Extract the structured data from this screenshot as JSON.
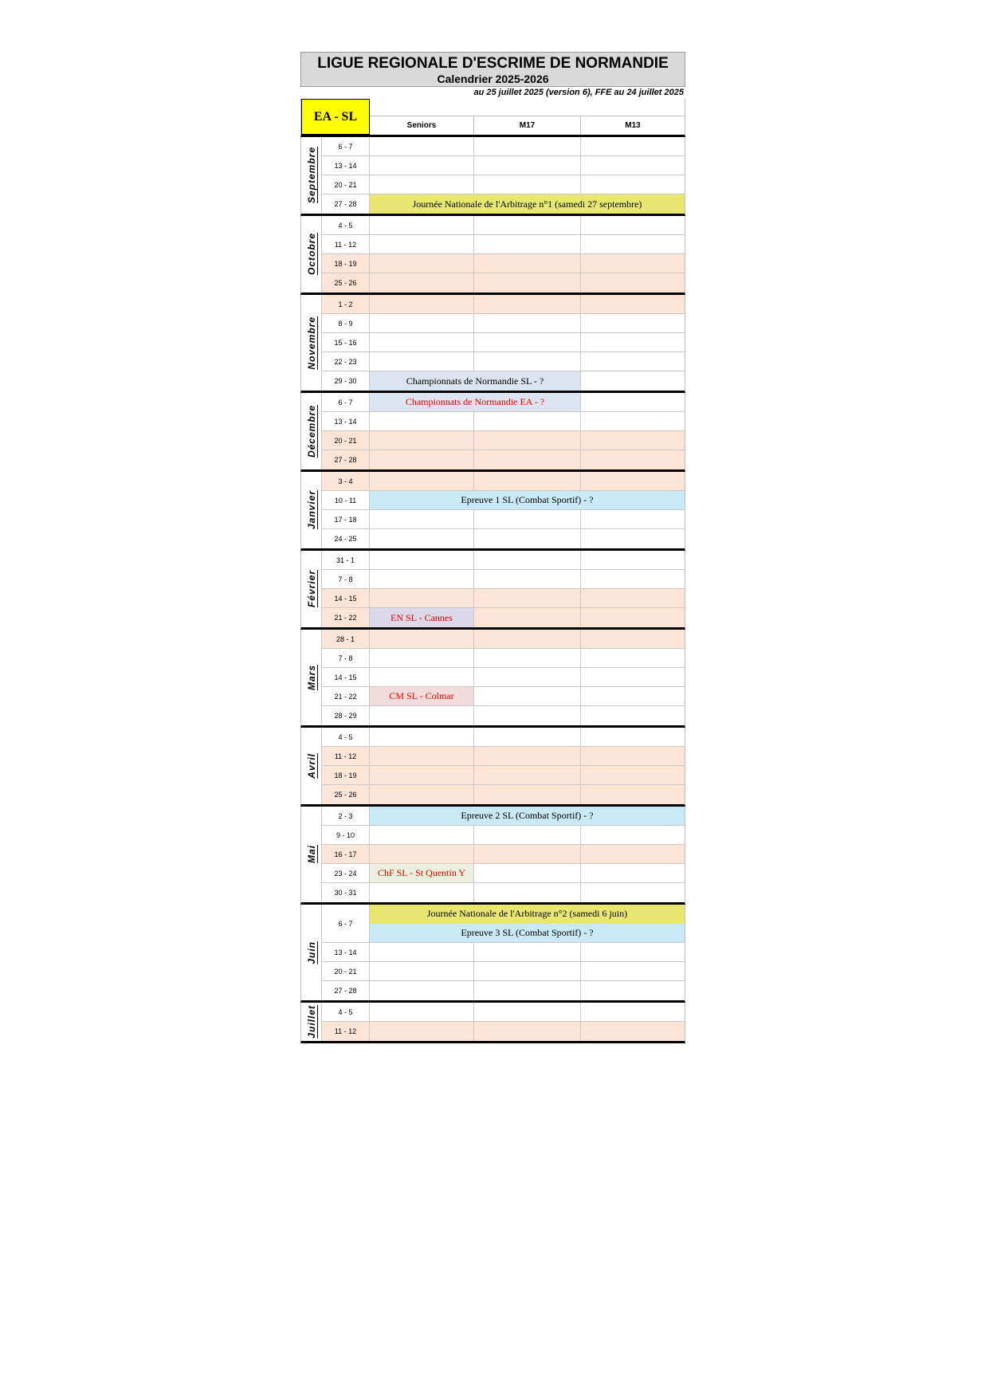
{
  "header": {
    "title": "LIGUE REGIONALE D'ESCRIME DE NORMANDIE",
    "subtitle": "Calendrier 2025-2026",
    "version_note": "au 25 juillet 2025 (version 6), FFE au 24 juillet 2025",
    "corner_label": "EA - SL",
    "columns": [
      "Seniors",
      "M17",
      "M13"
    ]
  },
  "colors": {
    "white": "#ffffff",
    "peach": "#fce4d6",
    "bandYellow": "#e8e870",
    "blueGrey": "#dce4ef",
    "lightBlue": "#c9e9f6",
    "lavender": "#dbd8e9",
    "rose": "#f2dcdb",
    "lightGreen": "#ebf1de",
    "cornerYellow": "#ffff00",
    "titleGrey": "#d9d9d9",
    "red": "#ee0000",
    "black": "#000000"
  },
  "months": [
    {
      "name": "Septembre",
      "weeks": [
        {
          "label": "6 - 7",
          "bg": "white"
        },
        {
          "label": "13 - 14",
          "bg": "white"
        },
        {
          "label": "20 - 21",
          "bg": "white"
        },
        {
          "label": "27 - 28",
          "band": {
            "text": "Journée Nationale de l'Arbitrage n°1 (samedi 27 septembre)",
            "bg": "bandYellow",
            "color": "black",
            "span": 3
          }
        }
      ]
    },
    {
      "name": "Octobre",
      "weeks": [
        {
          "label": "4 - 5",
          "bg": "white"
        },
        {
          "label": "11 - 12",
          "bg": "white"
        },
        {
          "label": "18 - 19",
          "bg": "peach"
        },
        {
          "label": "25 - 26",
          "bg": "peach"
        }
      ]
    },
    {
      "name": "Novembre",
      "weeks": [
        {
          "label": "1 - 2",
          "bg": "peach"
        },
        {
          "label": "8 - 9",
          "bg": "white"
        },
        {
          "label": "15 - 16",
          "bg": "white"
        },
        {
          "label": "22 - 23",
          "bg": "white"
        },
        {
          "label": "29 - 30",
          "band": {
            "text": "Championnats de Normandie SL -  ?",
            "bg": "blueGrey",
            "color": "black",
            "span": 2
          }
        }
      ]
    },
    {
      "name": "Décembre",
      "weeks": [
        {
          "label": "6 - 7",
          "band": {
            "text": "Championnats de Normandie EA -  ?",
            "bg": "blueGrey",
            "color": "red",
            "span": 2
          }
        },
        {
          "label": "13 - 14",
          "bg": "white"
        },
        {
          "label": "20 - 21",
          "bg": "peach"
        },
        {
          "label": "27 - 28",
          "bg": "peach"
        }
      ]
    },
    {
      "name": "Janvier",
      "weeks": [
        {
          "label": "3 - 4",
          "bg": "peach"
        },
        {
          "label": "10 - 11",
          "band": {
            "text": "Epreuve 1 SL  (Combat Sportif) - ?",
            "bg": "lightBlue",
            "color": "black",
            "span": 3
          }
        },
        {
          "label": "17 - 18",
          "bg": "white"
        },
        {
          "label": "24 - 25",
          "bg": "white"
        }
      ]
    },
    {
      "name": "Février",
      "weeks": [
        {
          "label": "31 - 1",
          "bg": "white"
        },
        {
          "label": "7 - 8",
          "bg": "white"
        },
        {
          "label": "14 - 15",
          "bg": "peach"
        },
        {
          "label": "21 - 22",
          "bg": "peach",
          "event": {
            "text": "EN SL - Cannes",
            "bg": "lavender",
            "color": "red"
          }
        }
      ]
    },
    {
      "name": "Mars",
      "weeks": [
        {
          "label": "28 - 1",
          "bg": "peach"
        },
        {
          "label": "7 - 8",
          "bg": "white"
        },
        {
          "label": "14 - 15",
          "bg": "white"
        },
        {
          "label": "21 - 22",
          "bg": "white",
          "event": {
            "text": "CM SL - Colmar",
            "bg": "rose",
            "color": "red"
          }
        },
        {
          "label": "28 - 29",
          "bg": "white"
        }
      ]
    },
    {
      "name": "Avril",
      "weeks": [
        {
          "label": "4 - 5",
          "bg": "white"
        },
        {
          "label": "11 - 12",
          "bg": "peach"
        },
        {
          "label": "18 - 19",
          "bg": "peach"
        },
        {
          "label": "25 - 26",
          "bg": "peach"
        }
      ]
    },
    {
      "name": "Mai",
      "weeks": [
        {
          "label": "2 - 3",
          "band": {
            "text": "Epreuve 2 SL (Combat Sportif) - ?",
            "bg": "lightBlue",
            "color": "black",
            "span": 3
          }
        },
        {
          "label": "9 - 10",
          "bg": "white"
        },
        {
          "label": "16 - 17",
          "bg": "peach"
        },
        {
          "label": "23 - 24",
          "bg": "white",
          "event": {
            "text": "ChF SL - St Quentin Y",
            "bg": "lightGreen",
            "color": "red"
          }
        },
        {
          "label": "30 - 31",
          "bg": "white"
        }
      ]
    },
    {
      "name": "Juin",
      "weeks": [
        {
          "label": "6 - 7",
          "double": [
            {
              "text": "Journée Nationale de l'Arbitrage n°2 (samedi 6 juin)",
              "bg": "bandYellow",
              "color": "black"
            },
            {
              "text": "Epreuve 3 SL  (Combat Sportif) - ?",
              "bg": "lightBlue",
              "color": "black"
            }
          ]
        },
        {
          "label": "13 - 14",
          "bg": "white"
        },
        {
          "label": "20 - 21",
          "bg": "white"
        },
        {
          "label": "27 - 28",
          "bg": "white"
        }
      ]
    },
    {
      "name": "Juillet",
      "weeks": [
        {
          "label": "4 - 5",
          "bg": "white"
        },
        {
          "label": "11 - 12",
          "bg": "peach"
        }
      ]
    }
  ]
}
